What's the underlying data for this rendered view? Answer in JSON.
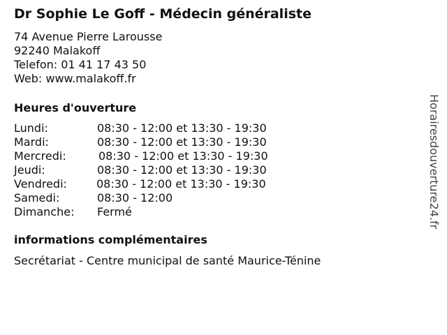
{
  "title": "Dr Sophie Le Goff - Médecin généraliste",
  "address": {
    "street": "74 Avenue Pierre Larousse",
    "city": "92240 Malakoff",
    "phone": "Telefon: 01 41 17 43 50",
    "web": "Web: www.malakoff.fr"
  },
  "hours_heading": "Heures d'ouverture",
  "hours": [
    {
      "day": "Lundi:",
      "time": "08:30 - 12:00 et 13:30 - 19:30"
    },
    {
      "day": "Mardi:",
      "time": "08:30 - 12:00 et 13:30 - 19:30"
    },
    {
      "day": "Mercredi:",
      "time": "08:30 - 12:00 et 13:30 - 19:30"
    },
    {
      "day": "Jeudi:",
      "time": "08:30 - 12:00 et 13:30 - 19:30"
    },
    {
      "day": "Vendredi:",
      "time": "08:30 - 12:00 et 13:30 - 19:30"
    },
    {
      "day": "Samedi:",
      "time": "08:30 - 12:00"
    },
    {
      "day": "Dimanche:",
      "time": "Fermé"
    }
  ],
  "info_heading": "informations complémentaires",
  "info_text": "Secrétariat - Centre municipal de santé Maurice-Ténine",
  "watermark": "Horairesdouverture24.fr"
}
